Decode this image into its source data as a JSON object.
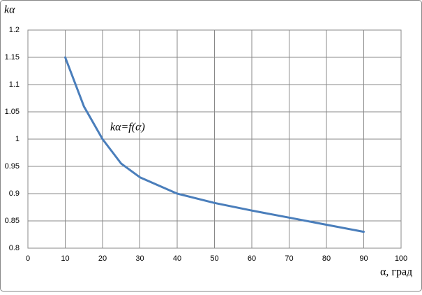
{
  "chart_data": {
    "type": "line",
    "ylabel": "kα",
    "xlabel": "α, град",
    "annotation": "kα=f(α)",
    "x": [
      10,
      15,
      20,
      25,
      30,
      40,
      50,
      60,
      70,
      80,
      90
    ],
    "values": [
      1.15,
      1.06,
      1.0,
      0.955,
      0.93,
      0.9,
      0.883,
      0.869,
      0.856,
      0.843,
      0.83
    ],
    "color": "#4a7ebb",
    "xlim": [
      0,
      100
    ],
    "xticks": [
      0,
      10,
      20,
      30,
      40,
      50,
      60,
      70,
      80,
      90,
      100
    ],
    "ylim": [
      0.8,
      1.2
    ],
    "yticks": [
      0.8,
      0.85,
      0.9,
      0.95,
      1,
      1.05,
      1.1,
      1.15,
      1.2
    ],
    "grid": true
  }
}
